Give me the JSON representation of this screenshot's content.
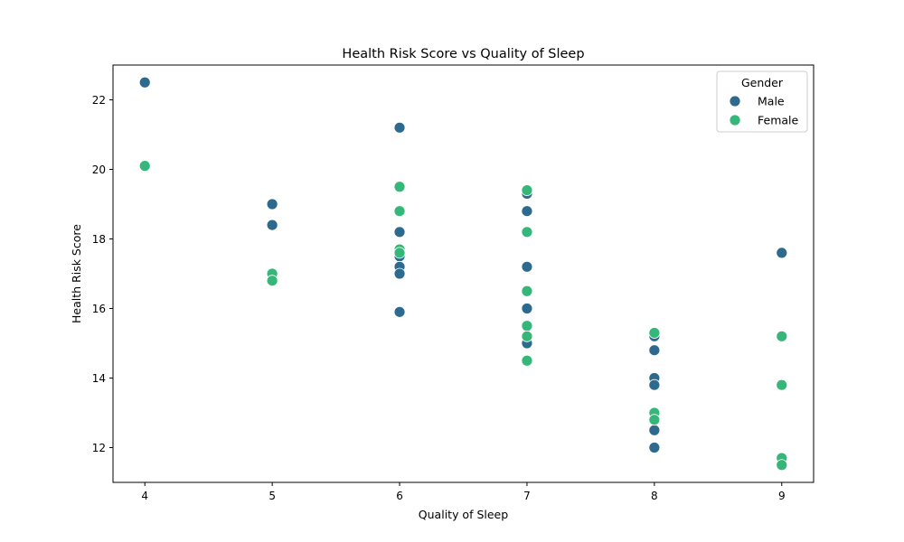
{
  "chart_data": {
    "type": "scatter",
    "title": "Health Risk Score vs Quality of Sleep",
    "xlabel": "Quality of Sleep",
    "ylabel": "Health Risk Score",
    "xlim": [
      3.75,
      9.25
    ],
    "ylim": [
      11.0,
      23.0
    ],
    "xticks": [
      4,
      5,
      6,
      7,
      8,
      9
    ],
    "yticks": [
      12,
      14,
      16,
      18,
      20,
      22
    ],
    "grid": false,
    "legend": {
      "title": "Gender",
      "placement": "top-right"
    },
    "series": [
      {
        "name": "Male",
        "color": "#2e6a8e",
        "points": [
          {
            "x": 4,
            "y": 22.5
          },
          {
            "x": 5,
            "y": 19.0
          },
          {
            "x": 5,
            "y": 18.4
          },
          {
            "x": 6,
            "y": 21.2
          },
          {
            "x": 6,
            "y": 18.2
          },
          {
            "x": 6,
            "y": 17.5
          },
          {
            "x": 6,
            "y": 17.2
          },
          {
            "x": 6,
            "y": 17.0
          },
          {
            "x": 6,
            "y": 15.9
          },
          {
            "x": 7,
            "y": 19.3
          },
          {
            "x": 7,
            "y": 18.8
          },
          {
            "x": 7,
            "y": 17.2
          },
          {
            "x": 7,
            "y": 16.0
          },
          {
            "x": 7,
            "y": 15.0
          },
          {
            "x": 8,
            "y": 15.2
          },
          {
            "x": 8,
            "y": 14.8
          },
          {
            "x": 8,
            "y": 14.0
          },
          {
            "x": 8,
            "y": 13.8
          },
          {
            "x": 8,
            "y": 12.5
          },
          {
            "x": 8,
            "y": 12.0
          },
          {
            "x": 9,
            "y": 17.6
          }
        ]
      },
      {
        "name": "Female",
        "color": "#35b779",
        "points": [
          {
            "x": 4,
            "y": 20.1
          },
          {
            "x": 5,
            "y": 17.0
          },
          {
            "x": 5,
            "y": 16.8
          },
          {
            "x": 6,
            "y": 19.5
          },
          {
            "x": 6,
            "y": 18.8
          },
          {
            "x": 6,
            "y": 17.7
          },
          {
            "x": 6,
            "y": 17.6
          },
          {
            "x": 7,
            "y": 19.4
          },
          {
            "x": 7,
            "y": 18.2
          },
          {
            "x": 7,
            "y": 16.5
          },
          {
            "x": 7,
            "y": 15.5
          },
          {
            "x": 7,
            "y": 15.2
          },
          {
            "x": 7,
            "y": 14.5
          },
          {
            "x": 8,
            "y": 15.3
          },
          {
            "x": 8,
            "y": 13.0
          },
          {
            "x": 8,
            "y": 12.8
          },
          {
            "x": 9,
            "y": 15.2
          },
          {
            "x": 9,
            "y": 13.8
          },
          {
            "x": 9,
            "y": 11.7
          },
          {
            "x": 9,
            "y": 11.5
          }
        ]
      }
    ]
  }
}
